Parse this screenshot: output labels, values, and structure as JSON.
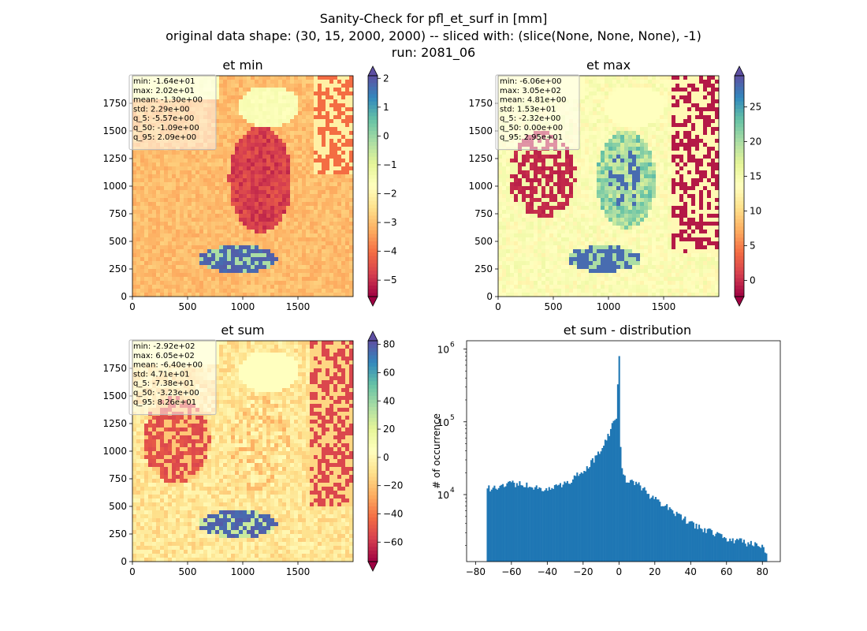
{
  "figure": {
    "title_lines": [
      "Sanity-Check for pfl_et_surf in [mm]",
      "original data shape: (30, 15, 2000, 2000) -- sliced with: (slice(None, None, None), -1)",
      "run: 2081_06"
    ]
  },
  "colors": {
    "background": "#ffffff",
    "hist_bar": "#1f77b4",
    "stats_box_bg": "#ffffff",
    "stats_box_border": "#bbbbbb"
  },
  "map_axes": {
    "xticks": [
      "0",
      "500",
      "1000",
      "1500"
    ],
    "yticks": [
      "0",
      "250",
      "500",
      "750",
      "1000",
      "1250",
      "1500",
      "1750"
    ]
  },
  "chart_data": [
    {
      "type": "heatmap",
      "title": "et min",
      "colormap": "Spectral",
      "stats": [
        "min: -1.64e+01",
        "max: 2.02e+01",
        "mean: -1.30e+00",
        "std: 2.29e+00",
        "q_5: -5.57e+00",
        "q_50: -1.09e+00",
        "q_95: 2.09e+00"
      ],
      "colorbar": {
        "vmin": -5.57,
        "vmax": 2.09,
        "ticks": [
          "2",
          "1",
          "0",
          "−1",
          "−2",
          "−3",
          "−4",
          "−5"
        ]
      }
    },
    {
      "type": "heatmap",
      "title": "et max",
      "colormap": "Spectral",
      "stats": [
        "min: -6.06e+00",
        "max: 3.05e+02",
        "mean: 4.81e+00",
        "std: 1.53e+01",
        "q_5: -2.32e+00",
        "q_50: 0.00e+00",
        "q_95: 2.95e+01"
      ],
      "colorbar": {
        "vmin": -2.32,
        "vmax": 29.5,
        "ticks": [
          "25",
          "20",
          "15",
          "10",
          "5",
          "0"
        ]
      }
    },
    {
      "type": "heatmap",
      "title": "et sum",
      "colormap": "Spectral",
      "stats": [
        "min: -2.92e+02",
        "max: 6.05e+02",
        "mean: -6.40e+00",
        "std: 4.71e+01",
        "q_5: -7.38e+01",
        "q_50: -3.23e+00",
        "q_95: 8.26e+01"
      ],
      "colorbar": {
        "vmin": -73.8,
        "vmax": 82.6,
        "ticks": [
          "80",
          "60",
          "40",
          "20",
          "0",
          "−20",
          "−40",
          "−60"
        ]
      }
    },
    {
      "type": "bar",
      "title": "et sum - distribution",
      "ylabel": "# of occurrence",
      "xlabel": "",
      "yscale": "log",
      "xlim": [
        -85,
        90
      ],
      "ylim": [
        1200,
        1300000
      ],
      "xticks": [
        "−80",
        "−60",
        "−40",
        "−20",
        "0",
        "20",
        "40",
        "60",
        "80"
      ],
      "yticks": [
        "10",
        "10",
        "10"
      ],
      "ytick_exponents": [
        "4",
        "5",
        "6"
      ],
      "bin_range": [
        -73.8,
        82.6
      ],
      "bin_count": 200,
      "anchors": [
        [
          -73.8,
          12000
        ],
        [
          -68,
          13000
        ],
        [
          -60,
          14500
        ],
        [
          -50,
          13000
        ],
        [
          -40,
          12000
        ],
        [
          -30,
          14000
        ],
        [
          -24,
          18000
        ],
        [
          -18,
          24000
        ],
        [
          -12,
          34000
        ],
        [
          -8,
          52000
        ],
        [
          -5,
          70000
        ],
        [
          -2,
          120000
        ],
        [
          -1,
          120000
        ],
        [
          -0.4,
          800000
        ],
        [
          0.3,
          280000
        ],
        [
          0.8,
          45000
        ],
        [
          2,
          18000
        ],
        [
          5,
          15000
        ],
        [
          10,
          14000
        ],
        [
          15,
          11000
        ],
        [
          20,
          8500
        ],
        [
          30,
          6000
        ],
        [
          40,
          4000
        ],
        [
          50,
          3200
        ],
        [
          60,
          2500
        ],
        [
          70,
          2200
        ],
        [
          80,
          2000
        ],
        [
          82.6,
          1500
        ]
      ]
    }
  ]
}
